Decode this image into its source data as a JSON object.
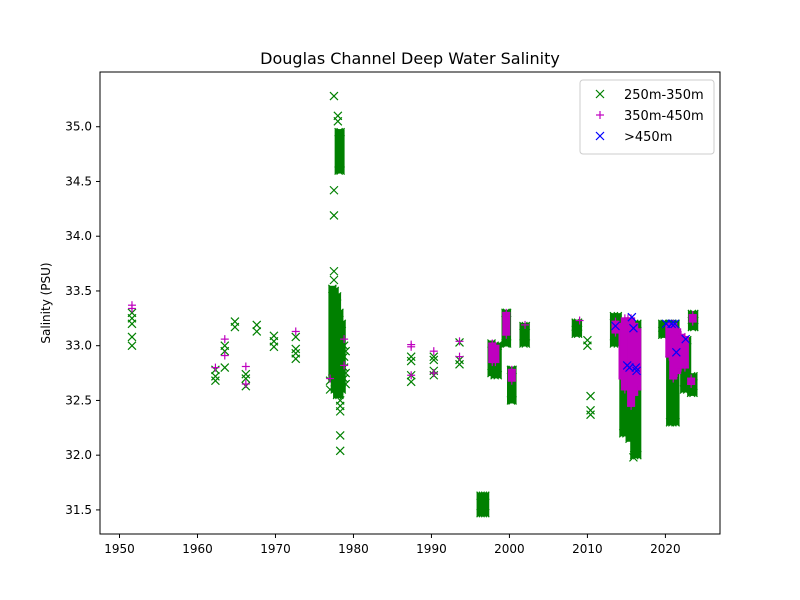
{
  "chart_data": {
    "type": "scatter",
    "title": "Douglas Channel Deep Water Salinity",
    "xlabel": "",
    "ylabel": "Salinity (PSU)",
    "xlim": [
      1947.5,
      2027
    ],
    "ylim": [
      31.28,
      35.5
    ],
    "xticks": [
      1950,
      1960,
      1970,
      1980,
      1990,
      2000,
      2010,
      2020
    ],
    "yticks": [
      31.5,
      32.0,
      32.5,
      33.0,
      33.5,
      34.0,
      34.5,
      35.0
    ],
    "ytick_labels": [
      "31.5",
      "32.0",
      "32.5",
      "33.0",
      "33.5",
      "34.0",
      "34.5",
      "35.0"
    ],
    "grid": false,
    "legend_position": "upper right",
    "series": [
      {
        "name": "250m-350m",
        "marker": "x",
        "color": "#008000",
        "points": [
          [
            1951.6,
            33.0
          ],
          [
            1951.6,
            33.08
          ],
          [
            1951.6,
            33.2
          ],
          [
            1951.6,
            33.25
          ],
          [
            1951.6,
            33.3
          ],
          [
            1962.3,
            32.68
          ],
          [
            1962.3,
            32.72
          ],
          [
            1962.3,
            32.78
          ],
          [
            1963.5,
            32.8
          ],
          [
            1963.5,
            32.95
          ],
          [
            1963.5,
            33.0
          ],
          [
            1964.8,
            33.17
          ],
          [
            1964.8,
            33.22
          ],
          [
            1966.2,
            32.63
          ],
          [
            1966.2,
            32.7
          ],
          [
            1966.2,
            32.74
          ],
          [
            1967.6,
            33.13
          ],
          [
            1967.6,
            33.19
          ],
          [
            1969.8,
            32.99
          ],
          [
            1969.8,
            33.04
          ],
          [
            1969.8,
            33.09
          ],
          [
            1972.6,
            32.88
          ],
          [
            1972.6,
            32.93
          ],
          [
            1972.6,
            32.97
          ],
          [
            1972.6,
            33.08
          ],
          [
            1977.0,
            32.6
          ],
          [
            1977.0,
            32.68
          ],
          [
            1977.5,
            35.28
          ],
          [
            1977.5,
            34.42
          ],
          [
            1977.5,
            34.19
          ],
          [
            1977.5,
            33.68
          ],
          [
            1977.5,
            33.6
          ],
          [
            1978.0,
            35.1
          ],
          [
            1978.0,
            35.05
          ],
          [
            1978.3,
            32.04
          ],
          [
            1978.3,
            32.18
          ],
          [
            1978.3,
            32.4
          ],
          [
            1978.3,
            32.45
          ],
          [
            1978.3,
            32.5
          ],
          [
            1978.8,
            32.7
          ],
          [
            1978.8,
            32.8
          ],
          [
            1978.8,
            32.9
          ],
          [
            1978.8,
            33.0
          ],
          [
            1979.0,
            32.65
          ],
          [
            1979.0,
            32.75
          ],
          [
            1979.0,
            32.95
          ],
          [
            1987.4,
            32.67
          ],
          [
            1987.4,
            32.73
          ],
          [
            1987.4,
            32.86
          ],
          [
            1987.4,
            32.9
          ],
          [
            1990.3,
            32.73
          ],
          [
            1990.3,
            32.77
          ],
          [
            1990.3,
            32.87
          ],
          [
            1990.3,
            32.9
          ],
          [
            1993.6,
            32.83
          ],
          [
            1993.6,
            32.87
          ],
          [
            1993.6,
            33.03
          ],
          [
            2010.0,
            33.0
          ],
          [
            2010.0,
            33.05
          ],
          [
            2010.4,
            32.37
          ],
          [
            2010.4,
            32.41
          ],
          [
            2010.4,
            32.54
          ],
          [
            2015.9,
            31.98
          ]
        ],
        "vertical_runs": [
          [
            1996.3,
            31.47,
            31.63
          ],
          [
            1996.6,
            31.47,
            31.63
          ],
          [
            1996.9,
            31.47,
            31.63
          ],
          [
            1977.3,
            32.7,
            33.52
          ],
          [
            1977.6,
            32.6,
            33.5
          ],
          [
            1977.9,
            32.55,
            33.45
          ],
          [
            1978.1,
            34.6,
            34.95
          ],
          [
            1978.35,
            34.6,
            34.95
          ],
          [
            1978.2,
            32.55,
            33.3
          ],
          [
            1978.5,
            32.6,
            33.2
          ],
          [
            1997.7,
            32.75,
            33.02
          ],
          [
            1998.1,
            32.73,
            33.0
          ],
          [
            1998.5,
            32.73,
            33.0
          ],
          [
            1999.5,
            33.02,
            33.3
          ],
          [
            1999.7,
            33.02,
            33.3
          ],
          [
            2000.2,
            32.5,
            32.78
          ],
          [
            2000.4,
            32.5,
            32.78
          ],
          [
            2001.8,
            33.02,
            33.18
          ],
          [
            2002.1,
            33.02,
            33.18
          ],
          [
            2008.5,
            33.11,
            33.21
          ],
          [
            2008.8,
            33.11,
            33.21
          ],
          [
            2013.4,
            33.02,
            33.27
          ],
          [
            2013.9,
            33.02,
            33.27
          ],
          [
            2014.6,
            32.2,
            33.2
          ],
          [
            2015.0,
            32.2,
            33.2
          ],
          [
            2015.4,
            32.15,
            33.2
          ],
          [
            2016.0,
            32.0,
            33.2
          ],
          [
            2016.4,
            32.0,
            33.2
          ],
          [
            2019.6,
            33.1,
            33.2
          ],
          [
            2019.9,
            33.1,
            33.2
          ],
          [
            2020.6,
            32.3,
            33.2
          ],
          [
            2020.9,
            32.3,
            33.2
          ],
          [
            2021.3,
            32.3,
            33.2
          ],
          [
            2022.4,
            32.6,
            33.05
          ],
          [
            2022.8,
            32.6,
            33.05
          ],
          [
            2023.3,
            32.57,
            32.72
          ],
          [
            2023.6,
            32.57,
            32.72
          ],
          [
            2023.4,
            33.17,
            33.29
          ],
          [
            2023.7,
            33.17,
            33.29
          ]
        ]
      },
      {
        "name": "350m-450m",
        "marker": "+",
        "color": "#bf00bf",
        "points": [
          [
            1951.6,
            33.37
          ],
          [
            1951.6,
            33.34
          ],
          [
            1962.3,
            32.8
          ],
          [
            1963.5,
            33.06
          ],
          [
            1963.5,
            32.91
          ],
          [
            1966.2,
            32.81
          ],
          [
            1966.2,
            32.65
          ],
          [
            1972.6,
            33.13
          ],
          [
            1977.0,
            32.7
          ],
          [
            1978.8,
            33.06
          ],
          [
            1978.8,
            32.82
          ],
          [
            1987.4,
            33.01
          ],
          [
            1987.4,
            32.99
          ],
          [
            1987.4,
            32.73
          ],
          [
            1990.3,
            32.95
          ],
          [
            1990.3,
            32.75
          ],
          [
            1993.6,
            33.04
          ],
          [
            1993.6,
            32.9
          ],
          [
            2002.0,
            33.19
          ],
          [
            2009.0,
            33.23
          ]
        ],
        "vertical_runs": [
          [
            1997.8,
            32.85,
            33.02
          ],
          [
            1998.2,
            32.85,
            33.0
          ],
          [
            1999.6,
            33.1,
            33.3
          ],
          [
            2000.3,
            32.68,
            32.78
          ],
          [
            2013.6,
            33.12,
            33.22
          ],
          [
            2014.5,
            32.7,
            33.2
          ],
          [
            2014.8,
            32.6,
            33.25
          ],
          [
            2015.2,
            32.6,
            33.25
          ],
          [
            2015.6,
            32.45,
            33.25
          ],
          [
            2016.0,
            32.55,
            33.2
          ],
          [
            2016.4,
            32.6,
            33.15
          ],
          [
            2020.5,
            32.9,
            33.2
          ],
          [
            2021.0,
            32.7,
            33.2
          ],
          [
            2021.5,
            32.75,
            33.15
          ],
          [
            2022.0,
            32.8,
            33.1
          ],
          [
            2022.5,
            32.8,
            33.08
          ],
          [
            2023.3,
            32.65,
            32.7
          ],
          [
            2023.5,
            33.22,
            33.28
          ]
        ]
      },
      {
        "name": ">450m",
        "marker": "x",
        "color": "#0000ff",
        "points": [
          [
            2013.6,
            33.18
          ],
          [
            2015.1,
            32.82
          ],
          [
            2015.4,
            32.8
          ],
          [
            2015.7,
            33.26
          ],
          [
            2015.9,
            33.16
          ],
          [
            2016.3,
            32.77
          ],
          [
            2016.2,
            32.8
          ],
          [
            2020.1,
            33.2
          ],
          [
            2020.8,
            33.2
          ],
          [
            2021.2,
            33.2
          ],
          [
            2021.4,
            32.94
          ],
          [
            2022.6,
            33.06
          ]
        ]
      }
    ]
  }
}
